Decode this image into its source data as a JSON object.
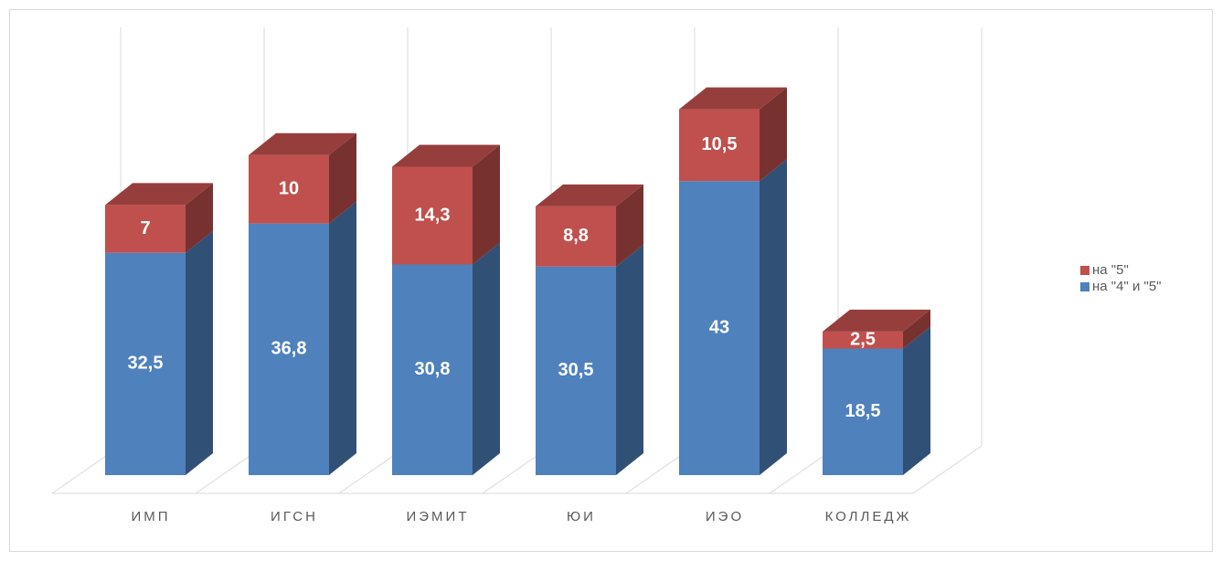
{
  "chart_data": {
    "type": "bar3d_stacked",
    "categories": [
      "ИМП",
      "ИГСН",
      "ИЭМИТ",
      "ЮИ",
      "ИЭО",
      "КОЛЛЕДЖ"
    ],
    "series": [
      {
        "name": "на \"4\" и \"5\"",
        "color": "#4f81bd",
        "values": [
          32.5,
          36.8,
          30.8,
          30.5,
          43,
          18.5
        ],
        "value_labels": [
          "32,5",
          "36,8",
          "30,8",
          "30,5",
          "43",
          "18,5"
        ]
      },
      {
        "name": "на \"5\"",
        "color": "#c0504d",
        "values": [
          7,
          10,
          14.3,
          8.8,
          10.5,
          2.5
        ],
        "value_labels": [
          "7",
          "10",
          "14,3",
          "8,8",
          "10,5",
          "2,5"
        ]
      }
    ],
    "ylim": [
      0,
      60
    ],
    "legend": "right"
  }
}
